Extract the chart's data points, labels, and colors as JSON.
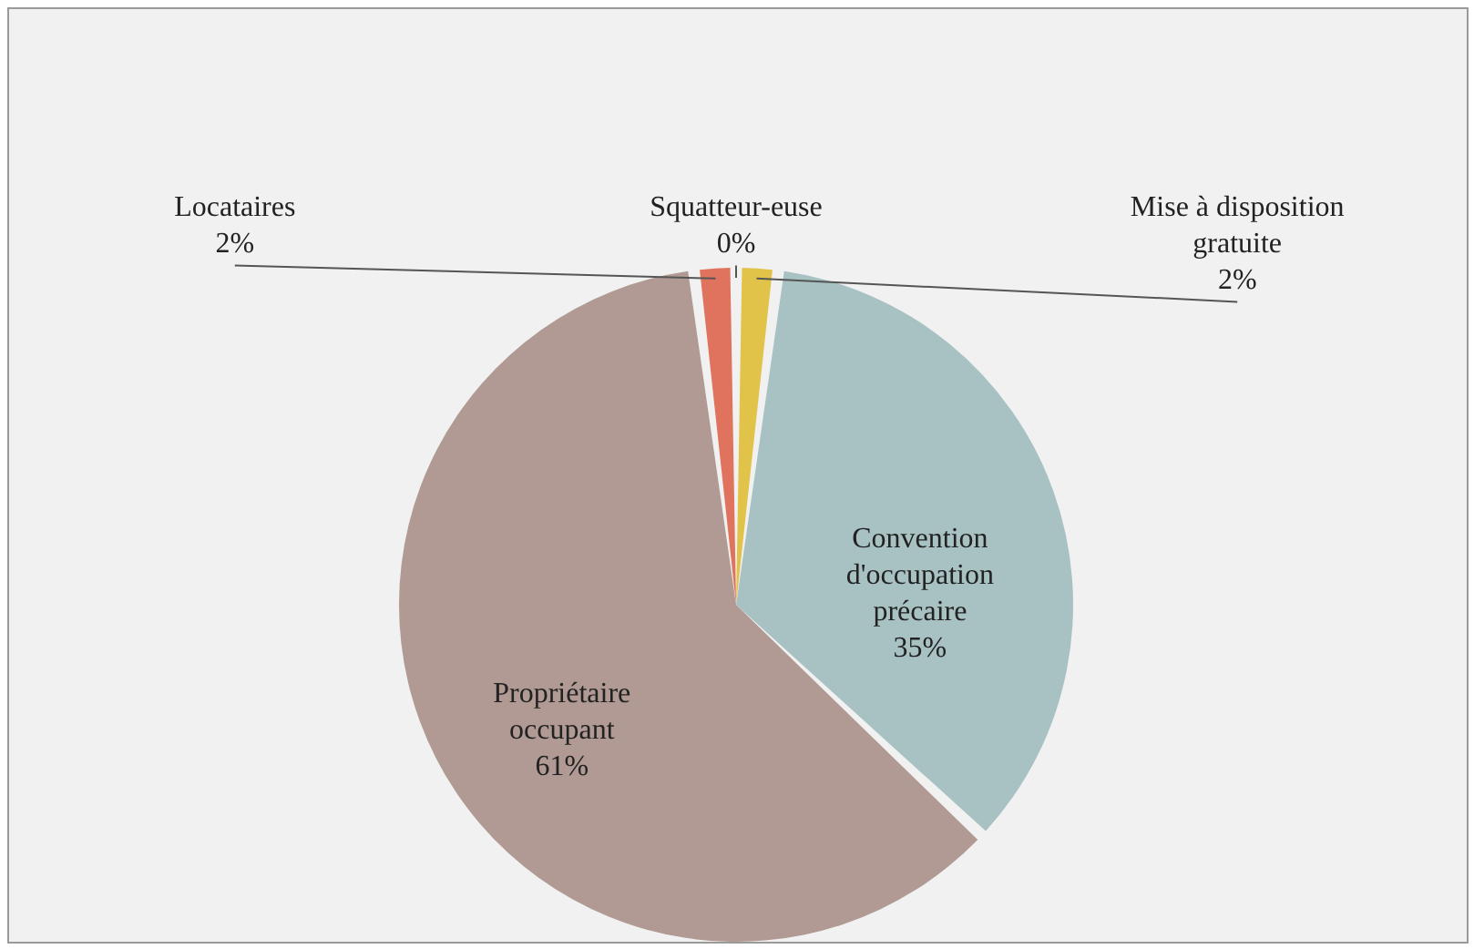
{
  "chart_data": {
    "type": "pie",
    "categories": [
      "Squatteur-euse",
      "Mise à disposition gratuite",
      "Convention d'occupation précaire",
      "Propriétaire occupant",
      "Locataires"
    ],
    "values": [
      0,
      2,
      35,
      61,
      2
    ],
    "value_labels": [
      "0%",
      "2%",
      "35%",
      "61%",
      "2%"
    ],
    "colors": [
      "#c9b458",
      "#e2c34a",
      "#a8c2c4",
      "#b09a93",
      "#e0735d"
    ],
    "legend": false
  }
}
